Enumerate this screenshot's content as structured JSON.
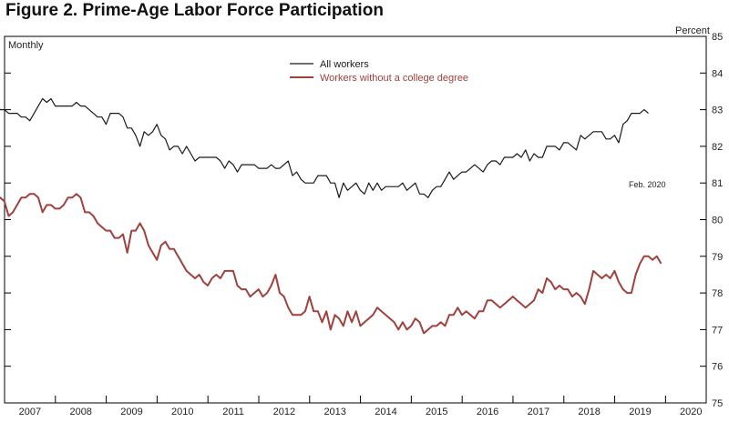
{
  "chart_data": {
    "type": "line",
    "title": "Figure 2. Prime-Age Labor Force Participation",
    "frequency_label": "Monthly",
    "ylabel": "Percent",
    "ylim": [
      75,
      85
    ],
    "yticks": [
      "75",
      "76",
      "77",
      "78",
      "79",
      "80",
      "81",
      "82",
      "83",
      "84",
      "85"
    ],
    "xlim": [
      2007,
      2020.8
    ],
    "xticks": [
      "2007",
      "2008",
      "2009",
      "2010",
      "2011",
      "2012",
      "2013",
      "2014",
      "2015",
      "2016",
      "2017",
      "2018",
      "2019",
      "2020"
    ],
    "annotation": "Feb. 2020",
    "legend_position": "top-center",
    "colors": {
      "all": "#1a1a1a",
      "noncollege": "#a0413c"
    },
    "series": [
      {
        "name": "All workers",
        "key": "all",
        "start": 2006.58,
        "step": 0.08333,
        "values": [
          83.3,
          83.4,
          83.2,
          83.2,
          83.0,
          83.0,
          82.9,
          82.9,
          82.9,
          82.8,
          82.8,
          82.7,
          82.9,
          83.1,
          83.3,
          83.2,
          83.3,
          83.1,
          83.1,
          83.1,
          83.1,
          83.1,
          83.2,
          83.1,
          83.1,
          83.0,
          82.9,
          82.8,
          82.8,
          82.6,
          82.9,
          82.9,
          82.9,
          82.8,
          82.5,
          82.5,
          82.3,
          82.0,
          82.4,
          82.3,
          82.4,
          82.6,
          82.3,
          82.2,
          81.9,
          82.0,
          82.0,
          81.8,
          82.0,
          81.8,
          81.6,
          81.7,
          81.7,
          81.7,
          81.7,
          81.7,
          81.6,
          81.4,
          81.6,
          81.5,
          81.3,
          81.5,
          81.5,
          81.5,
          81.5,
          81.4,
          81.4,
          81.4,
          81.5,
          81.4,
          81.4,
          81.5,
          81.6,
          81.2,
          81.3,
          81.1,
          81.0,
          81.0,
          81.0,
          81.2,
          81.2,
          81.2,
          81.0,
          81.0,
          80.6,
          81.0,
          80.8,
          80.9,
          81.0,
          80.8,
          80.7,
          81.0,
          80.8,
          81.0,
          80.8,
          80.9,
          80.9,
          80.9,
          80.9,
          81.0,
          80.8,
          80.9,
          81.0,
          80.7,
          80.7,
          80.6,
          80.8,
          80.9,
          80.9,
          81.1,
          81.3,
          81.1,
          81.2,
          81.3,
          81.3,
          81.4,
          81.5,
          81.4,
          81.3,
          81.5,
          81.6,
          81.6,
          81.5,
          81.7,
          81.7,
          81.7,
          81.8,
          81.7,
          81.9,
          81.6,
          81.8,
          81.7,
          81.7,
          82.0,
          82.0,
          82.0,
          81.9,
          82.1,
          82.1,
          82.0,
          81.9,
          82.3,
          82.2,
          82.3,
          82.4,
          82.4,
          82.4,
          82.2,
          82.2,
          82.3,
          82.1,
          82.6,
          82.7,
          82.9,
          82.9,
          82.9,
          83.0,
          82.9
        ]
      },
      {
        "name": "Workers without a college degree",
        "key": "noncollege",
        "start": 2006.58,
        "step": 0.08333,
        "values": [
          80.8,
          80.7,
          80.5,
          80.6,
          80.6,
          80.5,
          80.1,
          80.2,
          80.4,
          80.6,
          80.6,
          80.7,
          80.7,
          80.6,
          80.2,
          80.4,
          80.4,
          80.3,
          80.3,
          80.4,
          80.6,
          80.6,
          80.7,
          80.6,
          80.2,
          80.2,
          80.1,
          79.9,
          79.8,
          79.7,
          79.7,
          79.5,
          79.5,
          79.6,
          79.1,
          79.7,
          79.7,
          79.9,
          79.7,
          79.3,
          79.1,
          78.9,
          79.3,
          79.4,
          79.2,
          79.2,
          79.0,
          78.8,
          78.6,
          78.5,
          78.4,
          78.5,
          78.3,
          78.2,
          78.4,
          78.5,
          78.4,
          78.6,
          78.6,
          78.6,
          78.2,
          78.1,
          78.1,
          77.9,
          78.0,
          78.1,
          77.9,
          78.0,
          78.2,
          78.5,
          78.0,
          77.9,
          77.6,
          77.4,
          77.4,
          77.4,
          77.5,
          77.9,
          77.5,
          77.5,
          77.2,
          77.5,
          77.0,
          77.4,
          77.3,
          77.1,
          77.5,
          77.2,
          77.5,
          77.1,
          77.2,
          77.3,
          77.4,
          77.6,
          77.5,
          77.4,
          77.3,
          77.2,
          77.0,
          77.2,
          77.0,
          77.1,
          77.3,
          77.2,
          76.9,
          77.0,
          77.1,
          77.1,
          77.2,
          77.1,
          77.4,
          77.4,
          77.6,
          77.4,
          77.5,
          77.4,
          77.3,
          77.5,
          77.5,
          77.8,
          77.8,
          77.7,
          77.6,
          77.7,
          77.8,
          77.9,
          77.8,
          77.7,
          77.6,
          77.7,
          77.8,
          78.1,
          78.0,
          78.4,
          78.3,
          78.1,
          78.2,
          78.1,
          78.1,
          77.9,
          78.0,
          77.9,
          77.7,
          78.1,
          78.6,
          78.5,
          78.4,
          78.5,
          78.4,
          78.6,
          78.3,
          78.1,
          78.0,
          78.0,
          78.5,
          78.8,
          79.0,
          79.0,
          78.9,
          79.0,
          78.8
        ]
      }
    ]
  }
}
